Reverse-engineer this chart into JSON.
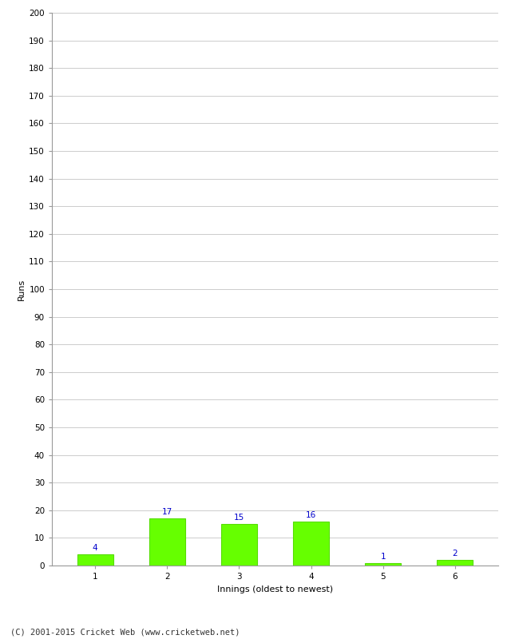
{
  "categories": [
    "1",
    "2",
    "3",
    "4",
    "5",
    "6"
  ],
  "values": [
    4,
    17,
    15,
    16,
    1,
    2
  ],
  "bar_color": "#66ff00",
  "bar_edge_color": "#55dd00",
  "label_color": "#0000cc",
  "ylabel": "Runs",
  "xlabel": "Innings (oldest to newest)",
  "ylim": [
    0,
    200
  ],
  "yticks": [
    0,
    10,
    20,
    30,
    40,
    50,
    60,
    70,
    80,
    90,
    100,
    110,
    120,
    130,
    140,
    150,
    160,
    170,
    180,
    190,
    200
  ],
  "footer": "(C) 2001-2015 Cricket Web (www.cricketweb.net)",
  "background_color": "#ffffff",
  "grid_color": "#cccccc",
  "label_fontsize": 7.5,
  "axis_label_fontsize": 8,
  "tick_fontsize": 7.5,
  "footer_fontsize": 7.5,
  "bar_width": 0.5
}
